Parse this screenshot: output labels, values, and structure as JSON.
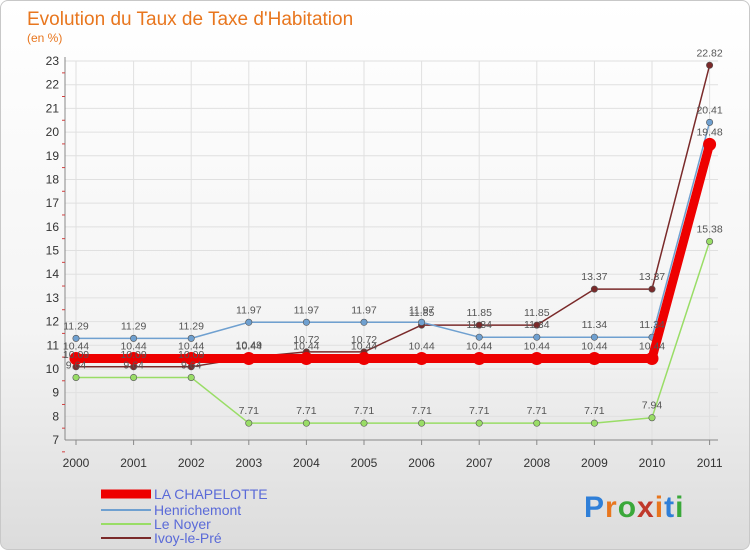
{
  "chart_data": {
    "type": "line",
    "title": "Evolution du Taux de Taxe d'Habitation",
    "subtitle": "(en %)",
    "xlabel": "",
    "ylabel": "",
    "x": [
      "2000",
      "2001",
      "2002",
      "2003",
      "2004",
      "2005",
      "2006",
      "2007",
      "2008",
      "2009",
      "2010",
      "2011"
    ],
    "ylim": [
      7,
      23
    ],
    "yticks": [
      7,
      8,
      9,
      10,
      11,
      12,
      13,
      14,
      15,
      16,
      17,
      18,
      19,
      20,
      21,
      22,
      23
    ],
    "grid": true,
    "legend_position": "bottom-left",
    "series": [
      {
        "name": "LA CHAPELOTTE",
        "color": "#ee0000",
        "values": [
          10.44,
          10.44,
          10.44,
          10.44,
          10.44,
          10.44,
          10.44,
          10.44,
          10.44,
          10.44,
          10.44,
          19.48
        ],
        "labels": [
          "10.44",
          "10.44",
          "10.44",
          "10.44",
          "10.44",
          "10.44",
          "10.44",
          "10.44",
          "10.44",
          "10.44",
          "10.44",
          "19.48"
        ]
      },
      {
        "name": "Henrichemont",
        "color": "#6fa0d0",
        "values": [
          11.29,
          11.29,
          11.29,
          11.97,
          11.97,
          11.97,
          11.97,
          11.34,
          11.34,
          11.34,
          11.34,
          20.41
        ],
        "labels": [
          "11.29",
          "11.29",
          "11.29",
          "11.97",
          "11.97",
          "11.97",
          "11.97",
          "11.34",
          "11.34",
          "11.34",
          "11.34",
          "20.41"
        ]
      },
      {
        "name": "Le Noyer",
        "color": "#99dd66",
        "values": [
          9.64,
          9.64,
          9.64,
          7.71,
          7.71,
          7.71,
          7.71,
          7.71,
          7.71,
          7.71,
          7.94,
          15.38
        ],
        "labels": [
          "9.64",
          "9.64",
          "9.64",
          "7.71",
          "7.71",
          "7.71",
          "7.71",
          "7.71",
          "7.71",
          "7.71",
          "7.94",
          "15.38"
        ]
      },
      {
        "name": "Ivoy-le-Pré",
        "color": "#7a2a2a",
        "values": [
          10.09,
          10.09,
          10.09,
          10.49,
          10.72,
          10.72,
          11.85,
          11.85,
          11.85,
          13.37,
          13.37,
          22.82
        ],
        "labels": [
          "10.09",
          "10.09",
          "10.09",
          "10.49",
          "10.72",
          "10.72",
          "11.85",
          "11.85",
          "11.85",
          "13.37",
          "13.37",
          "22.82"
        ]
      }
    ]
  },
  "logo": {
    "text": "Proxiti",
    "letters": [
      "P",
      "r",
      "o",
      "x",
      "i",
      "t",
      "i"
    ]
  }
}
